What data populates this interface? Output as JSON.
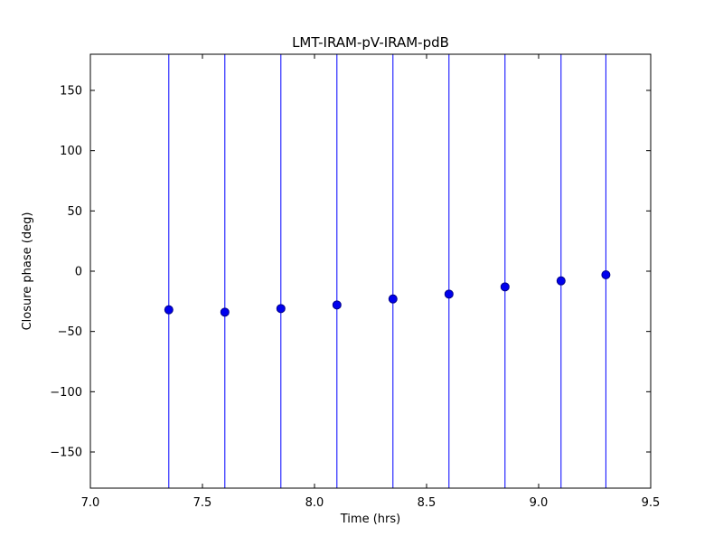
{
  "chart_data": {
    "type": "scatter",
    "title": "LMT-IRAM-pV-IRAM-pdB",
    "xlabel": "Time (hrs)",
    "ylabel": "Closure phase (deg)",
    "xlim": [
      7.0,
      9.5
    ],
    "ylim": [
      -180,
      180
    ],
    "xticks": [
      7.0,
      7.5,
      8.0,
      8.5,
      9.0,
      9.5
    ],
    "xtick_labels": [
      "7.0",
      "7.5",
      "8.0",
      "8.5",
      "9.0",
      "9.5"
    ],
    "yticks": [
      -150,
      -100,
      -50,
      0,
      50,
      100,
      150
    ],
    "ytick_labels": [
      "−150",
      "−100",
      "−50",
      "0",
      "50",
      "100",
      "150"
    ],
    "series": [
      {
        "name": "closure-phase",
        "x": [
          7.35,
          7.6,
          7.85,
          8.1,
          8.35,
          8.6,
          8.85,
          9.1,
          9.3
        ],
        "y": [
          -32,
          -34,
          -31,
          -28,
          -23,
          -19,
          -13,
          -8,
          -3
        ],
        "error_bars_full_height": true
      }
    ],
    "legend": "none",
    "grid": false,
    "colors": {
      "marker_fill": "#0000ee",
      "marker_edge": "#000088",
      "errorbar": "#0000ff",
      "axis": "#000000",
      "background": "#ffffff"
    }
  }
}
